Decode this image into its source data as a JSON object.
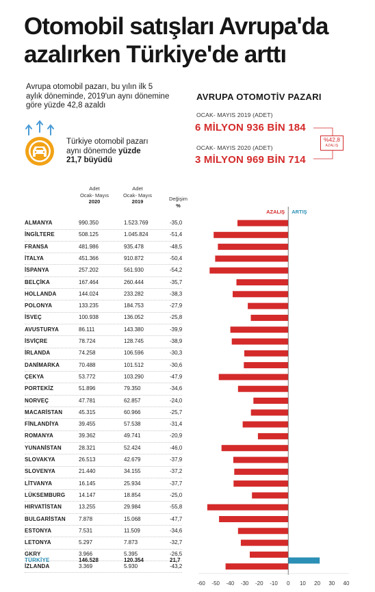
{
  "header": {
    "title_line1": "Otomobil satışları Avrupa'da",
    "title_line2": "azalırken Türkiye'de arttı",
    "intro_line1": "Avrupa otomobil pazarı, bu yılın ilk 5",
    "intro_line2": "aylık döneminde, 2019'un aynı dönemine",
    "intro_line3": "göre yüzde 42,8 azaldı",
    "turkey_line1": "Türkiye otomobil pazarı",
    "turkey_line2a": "aynı dönemde ",
    "turkey_line2b": "yüzde",
    "turkey_line3": "21,7 büyüdü"
  },
  "market": {
    "title": "AVRUPA OTOMOTİV PAZARI",
    "label_2019": "OCAK- MAYIS 2019 (ADET)",
    "value_2019": "6 MİLYON 936 BİN 184",
    "label_2020": "OCAK- MAYIS 2020 (ADET)",
    "value_2020": "3 MİLYON 969 BİN 714",
    "pct_value": "%42,8",
    "pct_label": "AZALIŞ"
  },
  "table": {
    "col2020_l1": "Adet",
    "col2020_l2": "Ocak- Mayıs",
    "col2020_l3": "2020",
    "col2019_l1": "Adet",
    "col2019_l2": "Ocak- Mayıs",
    "col2019_l3": "2019",
    "colchg_l1": "Değişim",
    "colchg_l2": "%"
  },
  "colors": {
    "decrease": "#d42a2a",
    "increase": "#2b8fb6",
    "icon_orange": "#f2a216",
    "arrow_blue": "#4a9bd6"
  },
  "chart_data": {
    "type": "bar",
    "orientation": "horizontal",
    "legend": {
      "decrease": "AZALIŞ",
      "increase": "ARTIŞ"
    },
    "xlim": [
      -60,
      40
    ],
    "xticks": [
      -60,
      -50,
      -40,
      -30,
      -20,
      -10,
      0,
      10,
      20,
      30,
      40
    ],
    "categories": [
      "ALMANYA",
      "İNGİLTERE",
      "FRANSA",
      "İTALYA",
      "İSPANYA",
      "BELÇİKA",
      "HOLLANDA",
      "POLONYA",
      "İSVEÇ",
      "AVUSTURYA",
      "İSVİÇRE",
      "İRLANDA",
      "DANİMARKA",
      "ÇEKYA",
      "PORTEKİZ",
      "NORVEÇ",
      "MACARİSTAN",
      "FİNLANDİYA",
      "ROMANYA",
      "YUNANİSTAN",
      "SLOVAKYA",
      "SLOVENYA",
      "LİTVANYA",
      "LÜKSEMBURG",
      "HIRVATİSTAN",
      "BULGARİSTAN",
      "ESTONYA",
      "LETONYA",
      "GKRY",
      "İZLANDA",
      "TÜRKİYE"
    ],
    "sales_2020": [
      "990.350",
      "508.125",
      "481.986",
      "451.366",
      "257.202",
      "167.464",
      "144.024",
      "133.235",
      "100.938",
      "86.111",
      "78.724",
      "74.258",
      "70.488",
      "53.772",
      "51.896",
      "47.781",
      "45.315",
      "39.455",
      "39.362",
      "28.321",
      "26.513",
      "21.440",
      "16.145",
      "14.147",
      "13.255",
      "7.878",
      "7.531",
      "5.297",
      "3.966",
      "3.369",
      "146.528"
    ],
    "sales_2019": [
      "1.523.769",
      "1.045.824",
      "935.478",
      "910.872",
      "561.930",
      "260.444",
      "233.282",
      "184.753",
      "136.052",
      "143.380",
      "128.745",
      "106.596",
      "101.512",
      "103.290",
      "79.350",
      "62.857",
      "60.966",
      "57.538",
      "49.741",
      "52.424",
      "42.679",
      "34.155",
      "25.934",
      "18.854",
      "29.984",
      "15.068",
      "11.509",
      "7.873",
      "5.395",
      "5.930",
      "120.354"
    ],
    "change_label": [
      "-35,0",
      "-51,4",
      "-48,5",
      "-50,4",
      "-54,2",
      "-35,7",
      "-38,3",
      "-27,9",
      "-25,8",
      "-39,9",
      "-38,9",
      "-30,3",
      "-30,6",
      "-47,9",
      "-34,6",
      "-24,0",
      "-25,7",
      "-31,4",
      "-20,9",
      "-46,0",
      "-37,9",
      "-37,2",
      "-37,7",
      "-25,0",
      "-55,8",
      "-47,7",
      "-34,6",
      "-32,7",
      "-26,5",
      "-43,2",
      "21,7"
    ],
    "values": [
      -35.0,
      -51.4,
      -48.5,
      -50.4,
      -54.2,
      -35.7,
      -38.3,
      -27.9,
      -25.8,
      -39.9,
      -38.9,
      -30.3,
      -30.6,
      -47.9,
      -34.6,
      -24.0,
      -25.7,
      -31.4,
      -20.9,
      -46.0,
      -37.9,
      -37.2,
      -37.7,
      -25.0,
      -55.8,
      -47.7,
      -34.6,
      -32.7,
      -26.5,
      -43.2,
      21.7
    ]
  }
}
